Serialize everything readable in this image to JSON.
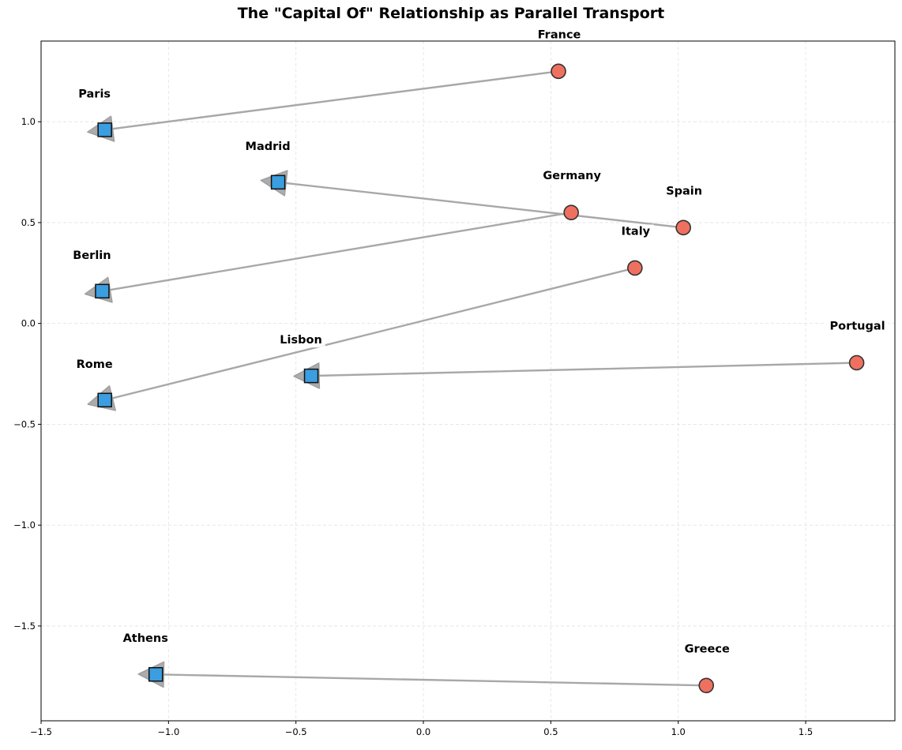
{
  "chart_data": {
    "type": "scatter",
    "title": "The \"Capital Of\" Relationship as Parallel Transport",
    "xlabel": "",
    "ylabel": "",
    "xlim": [
      -1.5,
      1.85
    ],
    "ylim": [
      -1.97,
      1.4
    ],
    "xticks": [
      -1.5,
      -1.0,
      -0.5,
      0.0,
      0.5,
      1.0,
      1.5
    ],
    "xtick_labels": [
      "−1.5",
      "−1.0",
      "−0.5",
      "0.0",
      "0.5",
      "1.0",
      "1.5"
    ],
    "yticks": [
      1.0,
      0.5,
      0.0,
      -0.5,
      -1.0,
      -1.5
    ],
    "ytick_labels": [
      "1.0",
      "0.5",
      "0.0",
      "−0.5",
      "−1.0",
      "−1.5"
    ],
    "grid": true,
    "legend": false,
    "colors": {
      "country_marker": "#f07060",
      "capital_marker": "#3a9ee0",
      "arrow": "#a8a8a8",
      "marker_edge": "#333333",
      "grid": "#e2e2e2"
    },
    "pairs": [
      {
        "country": "France",
        "country_x": 0.53,
        "country_y": 1.25,
        "capital": "Paris",
        "capital_x": -1.25,
        "capital_y": 0.96
      },
      {
        "country": "Germany",
        "country_x": 0.58,
        "country_y": 0.55,
        "capital": "Berlin",
        "capital_x": -1.26,
        "capital_y": 0.16
      },
      {
        "country": "Spain",
        "country_x": 1.02,
        "country_y": 0.475,
        "capital": "Madrid",
        "capital_x": -0.57,
        "capital_y": 0.7
      },
      {
        "country": "Italy",
        "country_x": 0.83,
        "country_y": 0.275,
        "capital": "Rome",
        "capital_x": -1.25,
        "capital_y": -0.38
      },
      {
        "country": "Portugal",
        "country_x": 1.7,
        "country_y": -0.195,
        "capital": "Lisbon",
        "capital_x": -0.44,
        "capital_y": -0.26
      },
      {
        "country": "Greece",
        "country_x": 1.11,
        "country_y": -1.795,
        "capital": "Athens",
        "capital_x": -1.05,
        "capital_y": -1.74
      }
    ]
  }
}
